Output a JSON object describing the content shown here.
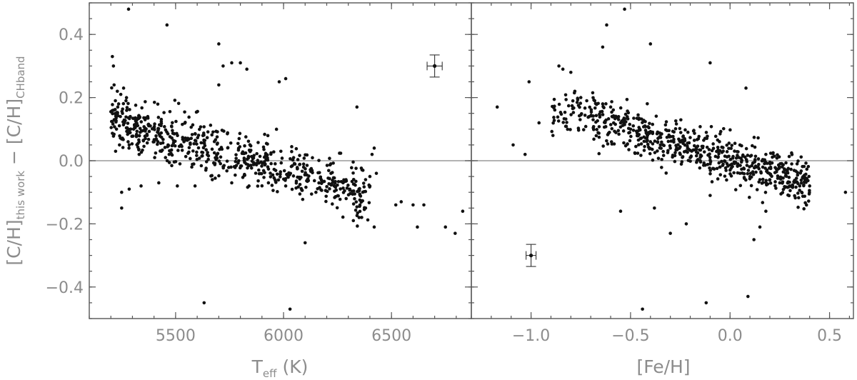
{
  "chart_data": [
    {
      "type": "scatter",
      "panel": "left",
      "xlabel": "T",
      "xlabel_sub": "eff",
      "xlabel_suffix": " (K)",
      "ylabel": {
        "part1": "[C/H]",
        "sub1": "this work",
        "mid": " − ",
        "part2": "[C/H]",
        "sub2": "CHband"
      },
      "xlim": [
        5100,
        6870
      ],
      "ylim": [
        -0.5,
        0.5
      ],
      "xticks": [
        5500,
        6000,
        6500
      ],
      "xtick_labels": [
        "5500",
        "6000",
        "6500"
      ],
      "yticks": [
        -0.4,
        -0.2,
        0.0,
        0.2,
        0.4
      ],
      "ytick_labels": [
        "−0.4",
        "−0.2",
        "0.0",
        "0.2",
        "0.4"
      ],
      "reference_line_y": 0.0,
      "error_bar": {
        "x": 6700,
        "y": 0.3,
        "xerr": 35,
        "yerr": 0.035
      },
      "n_points": 720,
      "points_x": [
        5207,
        5212,
        5215,
        5221,
        5230,
        5236,
        5244,
        5254,
        5263,
        5281,
        5318,
        5360,
        5418,
        5465,
        5213,
        5218,
        5226,
        5232,
        5246,
        5259,
        5270,
        5290,
        5310,
        5336,
        5368,
        5400,
        5434,
        5470,
        5222,
        5240,
        5284,
        5331,
        5403,
        5461,
        5520,
        5575,
        5640,
        5250,
        5285,
        5340,
        5422,
        5508,
        5590,
        5670,
        5760,
        5840,
        5930,
        6010,
        6150,
        6290,
        6380,
        6420,
        5282,
        5460,
        5700,
        5632,
        6030,
        6340,
        6420,
        6545,
        6600,
        6620,
        6650,
        6750,
        6795,
        6830,
        6410,
        6400,
        6430,
        6380,
        6350,
        6520,
        5280,
        5285,
        5250,
        5720,
        5760,
        5700,
        5800,
        5830,
        5980,
        6010,
        6100
      ],
      "points_y": [
        0.33,
        0.3,
        0.24,
        0.19,
        0.22,
        0.18,
        0.14,
        0.15,
        0.12,
        0.1,
        0.08,
        0.07,
        0.06,
        0.05,
        0.16,
        0.13,
        0.1,
        0.17,
        0.21,
        0.23,
        0.19,
        0.14,
        0.11,
        0.09,
        0.08,
        0.06,
        0.03,
        0.02,
        0.03,
        0.05,
        0.04,
        0.02,
        0.01,
        0.0,
        -0.01,
        -0.02,
        -0.03,
        -0.1,
        -0.09,
        -0.08,
        -0.07,
        -0.08,
        -0.08,
        -0.06,
        -0.07,
        -0.08,
        -0.07,
        -0.08,
        -0.1,
        -0.12,
        -0.15,
        -0.21,
        0.48,
        0.43,
        0.37,
        -0.45,
        -0.47,
        0.17,
        0.04,
        -0.13,
        -0.14,
        -0.21,
        -0.14,
        -0.21,
        -0.23,
        -0.16,
        0.02,
        -0.05,
        -0.04,
        -0.06,
        -0.18,
        -0.14,
        0.06,
        0.05,
        -0.15,
        0.3,
        0.31,
        0.24,
        0.31,
        0.29,
        0.25,
        0.26,
        -0.26
      ]
    },
    {
      "type": "scatter",
      "panel": "right",
      "xlabel": "[Fe/H]",
      "xlim": [
        -1.3,
        0.62
      ],
      "ylim": [
        -0.5,
        0.5
      ],
      "xticks": [
        -1.0,
        -0.5,
        0.0,
        0.5
      ],
      "xtick_labels": [
        "−1.0",
        "−0.5",
        "0.0",
        "0.5"
      ],
      "yticks": [
        -0.4,
        -0.2,
        0.0,
        0.2,
        0.4
      ],
      "ytick_labels": [
        "",
        "",
        "",
        "",
        ""
      ],
      "reference_line_y": 0.0,
      "error_bar": {
        "x": -1.0,
        "y": -0.3,
        "xerr": 0.025,
        "yerr": 0.035
      },
      "n_points": 720,
      "points_x": [
        -1.17,
        -1.09,
        -1.03,
        -1.01,
        -0.96,
        -0.89,
        -0.86,
        -0.84,
        -0.8,
        -0.78,
        -0.75,
        -0.72,
        -0.68,
        -0.64,
        -0.6,
        -0.55,
        -0.5,
        -0.45,
        -0.4,
        -0.35,
        -0.3,
        -0.25,
        -0.2,
        -0.15,
        -0.1,
        -0.05,
        0.0,
        0.05,
        0.1,
        0.15,
        0.2,
        0.25,
        0.3,
        0.35,
        0.4,
        0.58,
        -0.64,
        -0.62,
        -0.53,
        -0.44,
        -0.38,
        -0.3,
        -0.22,
        -0.12,
        -0.1,
        0.09,
        0.08,
        -0.4,
        -0.55,
        -0.1,
        0.18,
        0.18,
        0.15,
        0.12
      ],
      "points_y": [
        0.17,
        0.05,
        0.02,
        0.25,
        0.12,
        0.08,
        0.3,
        0.29,
        0.28,
        0.22,
        0.2,
        0.19,
        0.19,
        0.18,
        0.17,
        0.12,
        0.1,
        0.07,
        0.06,
        0.05,
        0.04,
        0.02,
        0.01,
        0.0,
        -0.01,
        -0.02,
        -0.03,
        -0.04,
        -0.05,
        -0.06,
        -0.06,
        -0.07,
        -0.08,
        -0.08,
        -0.08,
        -0.1,
        0.36,
        0.43,
        0.48,
        -0.47,
        -0.15,
        -0.23,
        -0.2,
        -0.45,
        0.31,
        -0.43,
        0.23,
        0.37,
        -0.16,
        -0.11,
        0.02,
        -0.16,
        -0.21,
        -0.25
      ]
    }
  ]
}
